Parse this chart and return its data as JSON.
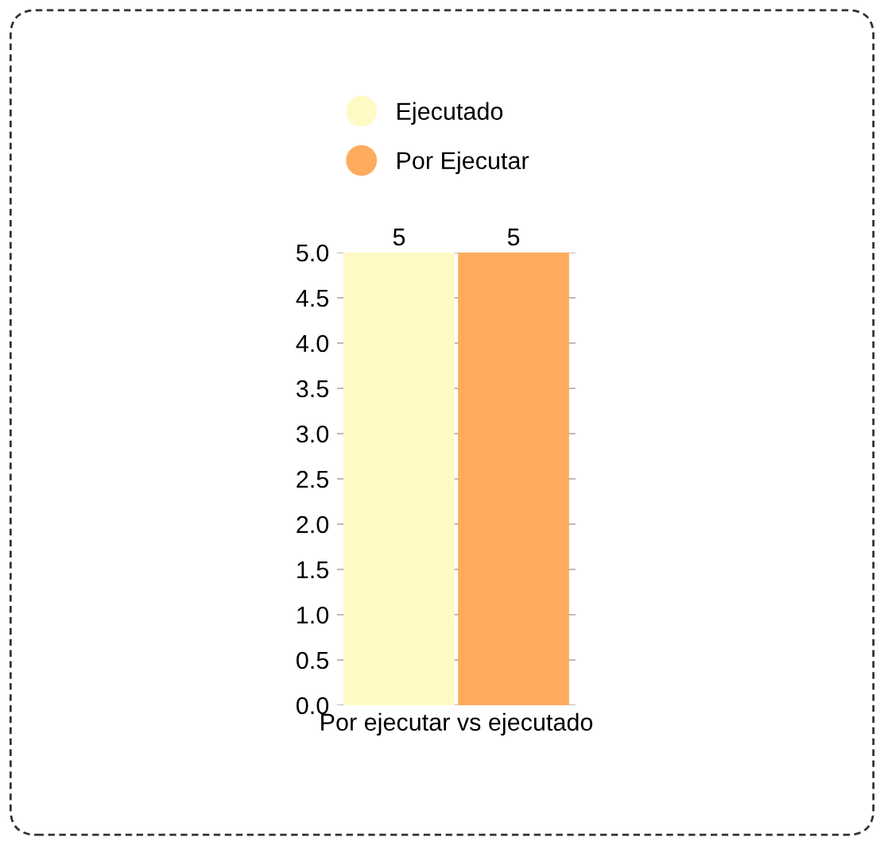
{
  "chart_data": {
    "type": "bar",
    "categories": [
      "Por ejecutar vs ejecutado"
    ],
    "series": [
      {
        "name": "Ejecutado",
        "color": "#fffac5",
        "values": [
          5
        ]
      },
      {
        "name": "Por Ejecutar",
        "color": "#ffab5e",
        "values": [
          5
        ]
      }
    ],
    "ylim": [
      0,
      5
    ],
    "yticks": [
      {
        "value": 0,
        "label": "0.0"
      },
      {
        "value": 0.5,
        "label": "0.5"
      },
      {
        "value": 1,
        "label": "1.0"
      },
      {
        "value": 1.5,
        "label": "1.5"
      },
      {
        "value": 2,
        "label": "2.0"
      },
      {
        "value": 2.5,
        "label": "2.5"
      },
      {
        "value": 3,
        "label": "3.0"
      },
      {
        "value": 3.5,
        "label": "3.5"
      },
      {
        "value": 4,
        "label": "4.0"
      },
      {
        "value": 4.5,
        "label": "4.5"
      },
      {
        "value": 5,
        "label": "5.0"
      }
    ],
    "grid": "y",
    "legend": "top",
    "data_labels": true
  }
}
